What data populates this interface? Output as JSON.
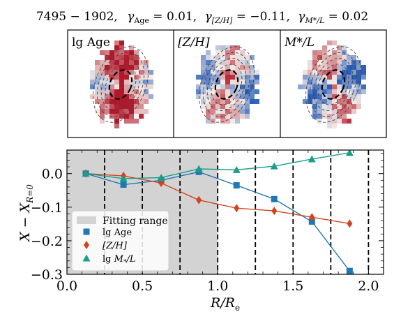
{
  "figure_title": "7495 − 1902,  γ_Age = 0.01,  γ_[Z/H] = −0.11,  γ_M*/L = 0.02",
  "title_parts": {
    "id": "7495 − 1902,",
    "g1": "γ",
    "g1_sub": "Age",
    "g1_val": " = 0.01,",
    "g2": "γ",
    "g2_sub": "[Z/H]",
    "g2_val": " = −0.11,",
    "g3": "γ",
    "g3_sub": "M*/L",
    "g3_val": " = 0.02"
  },
  "maps": [
    {
      "label": "lg Age",
      "colormap": "red-dominant"
    },
    {
      "label": "[Z/H]",
      "colormap": "blue-dominant"
    },
    {
      "label": "M*/L",
      "colormap": "blue-dominant"
    }
  ],
  "colors": {
    "age": "#1f77b4",
    "zh": "#d2441c",
    "ml": "#1a9e88",
    "fitting_range": "#d3d3d3",
    "map_red": "#b2182b",
    "map_blue": "#2c5fb8"
  },
  "chart_data": {
    "type": "line",
    "xlabel": "R/R_e",
    "ylabel": "X − X_R=0",
    "xlim": [
      0.0,
      2.1
    ],
    "ylim": [
      -0.3,
      0.07
    ],
    "xticks": [
      "0.0",
      "0.5",
      "1.0",
      "1.5",
      "2.0"
    ],
    "yticks": [
      "0.0",
      "−0.1",
      "−0.2",
      "−0.3"
    ],
    "ytick_values": [
      0.0,
      -0.1,
      -0.2,
      -0.3
    ],
    "xtick_values": [
      0.0,
      0.5,
      1.0,
      1.5,
      2.0
    ],
    "fitting_range": [
      0.0,
      1.0
    ],
    "vlines": [
      0.25,
      0.5,
      0.75,
      1.0,
      1.25,
      1.5,
      1.75,
      2.0
    ],
    "legend": {
      "placement": "lower-left",
      "shaded_label": "Fitting range"
    },
    "series": [
      {
        "name": "lg Age",
        "marker": "square",
        "x": [
          0.125,
          0.375,
          0.625,
          0.875,
          1.125,
          1.375,
          1.625,
          1.875
        ],
        "y": [
          0.0,
          -0.033,
          -0.02,
          0.005,
          -0.035,
          -0.076,
          -0.143,
          -0.29
        ]
      },
      {
        "name": "[Z/H]",
        "marker": "diamond",
        "x": [
          0.125,
          0.375,
          0.625,
          0.875,
          1.125,
          1.375,
          1.625,
          1.875
        ],
        "y": [
          0.0,
          -0.007,
          -0.028,
          -0.079,
          -0.103,
          -0.111,
          -0.13,
          -0.149
        ]
      },
      {
        "name": "lg M*/L",
        "marker": "triangle",
        "x": [
          0.125,
          0.375,
          0.625,
          0.875,
          1.125,
          1.375,
          1.625,
          1.875
        ],
        "y": [
          0.0,
          -0.015,
          -0.012,
          0.014,
          0.011,
          0.022,
          0.043,
          0.062
        ]
      }
    ]
  }
}
